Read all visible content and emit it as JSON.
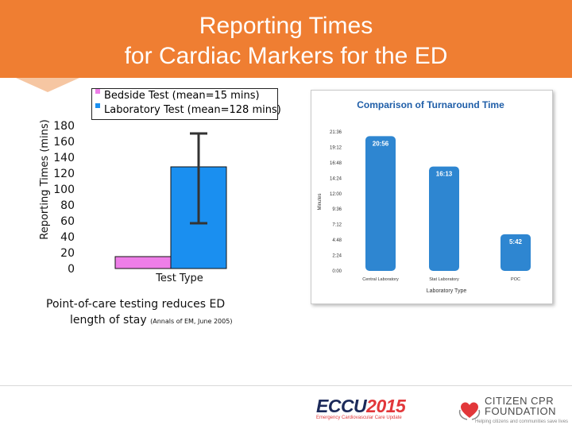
{
  "slide": {
    "title_line1": "Reporting Times",
    "title_line2": "for Cardiac Markers for the ED",
    "note_line1": "Point-of-care testing reduces ED",
    "note_line2": "length of stay",
    "note_citation": "(Annals of EM, June 2005)"
  },
  "colors": {
    "header": "#ef7e32",
    "bedside": "#ee7ee8",
    "laboratory": "#1a8ff0",
    "panel_bar": "#2e86d1",
    "panel_title": "#1f5ea8"
  },
  "chart_data": [
    {
      "type": "bar",
      "title": "",
      "xlabel": "Test Type",
      "ylabel": "Reporting Times (mins)",
      "ylim": [
        0,
        180
      ],
      "yticks": [
        "180",
        "160",
        "140",
        "120",
        "100",
        "80",
        "60",
        "40",
        "20",
        "0"
      ],
      "legend_position": "top",
      "series": [
        {
          "name": "Bedside Test (mean=15 mins)",
          "value": 15,
          "color": "#ee7ee8"
        },
        {
          "name": "Laboratory Test (mean=128 mins)",
          "value": 128,
          "color": "#1a8ff0",
          "error_low": 57,
          "error_high": 170
        }
      ]
    },
    {
      "type": "bar",
      "title": "Comparison of Turnaround Time",
      "xlabel": "Laboratory Type",
      "ylabel": "Minutes",
      "ylim_minutes": [
        0,
        1296
      ],
      "yticks": [
        "21:36",
        "19:12",
        "16:48",
        "14:24",
        "12:00",
        "9:36",
        "7:12",
        "4:48",
        "2:24",
        "0:00"
      ],
      "categories": [
        "Central Laboratory",
        "Stat Laboratory",
        "POC"
      ],
      "labels": [
        "20:56",
        "16:13",
        "5:42"
      ],
      "values_minutes": [
        1256,
        973,
        342
      ]
    }
  ]
}
